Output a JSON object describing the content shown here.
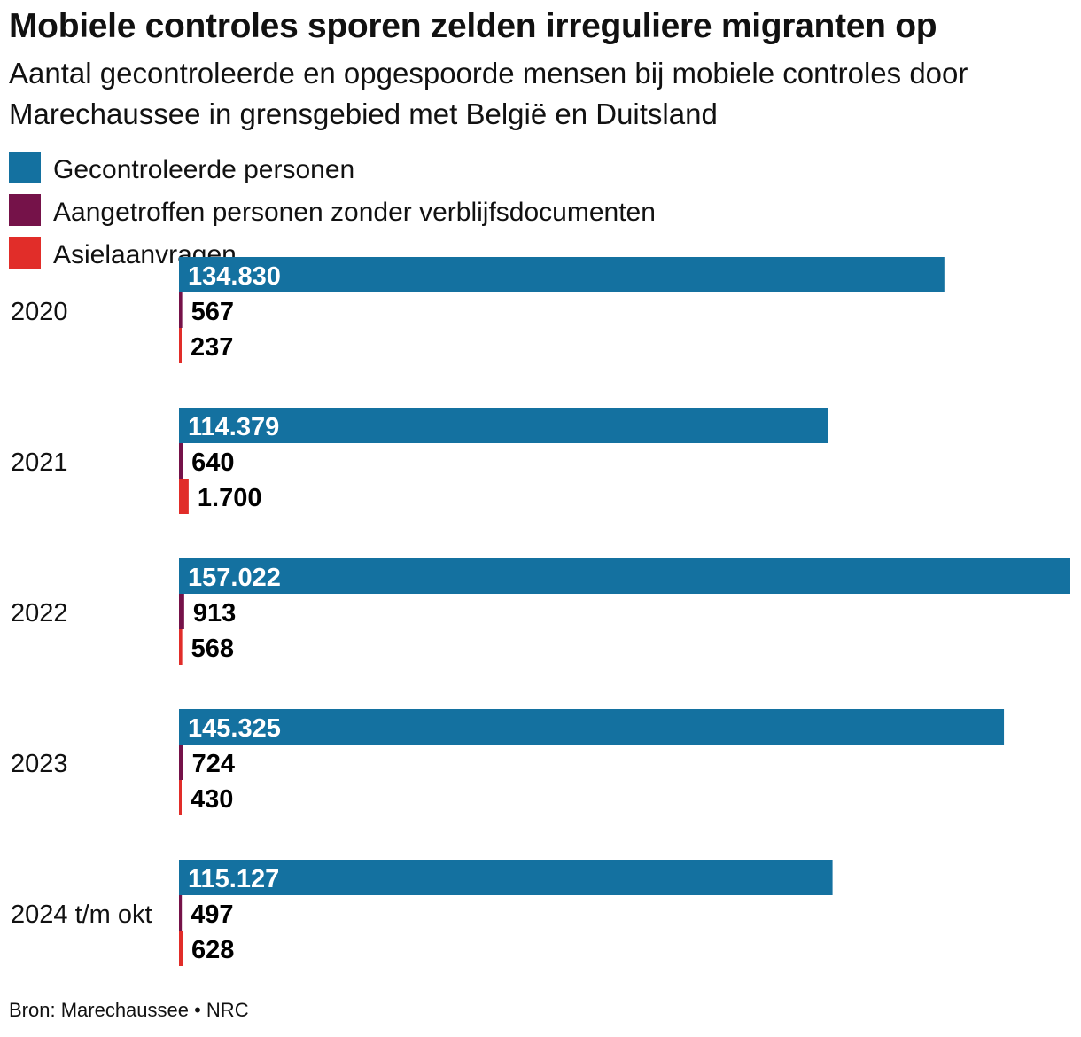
{
  "chart_data": {
    "type": "bar",
    "title": "Mobiele controles sporen zelden irreguliere migranten op",
    "subtitle": "Aantal gecontroleerde en opgespoorde mensen bij mobiele controles door Marechaussee in grensgebied met België en Duitsland",
    "categories": [
      "2020",
      "2021",
      "2022",
      "2023",
      "2024 t/m okt"
    ],
    "series": [
      {
        "name": "Gecontroleerde personen",
        "color": "#1471a0",
        "values": [
          134830,
          114379,
          157022,
          145325,
          115127
        ],
        "labels": [
          "134.830",
          "114.379",
          "157.022",
          "145.325",
          "115.127"
        ]
      },
      {
        "name": "Aangetroffen personen zonder verblijfsdocumenten",
        "color": "#751249",
        "values": [
          567,
          640,
          913,
          724,
          497
        ],
        "labels": [
          "567",
          "640",
          "913",
          "724",
          "497"
        ]
      },
      {
        "name": "Asielaanvragen",
        "color": "#e12d29",
        "values": [
          237,
          1700,
          568,
          430,
          628
        ],
        "labels": [
          "237",
          "1.700",
          "568",
          "430",
          "628"
        ]
      }
    ],
    "xlim": [
      0,
      157022
    ],
    "grid": false,
    "legend_position": "top"
  },
  "source": "Bron: Marechaussee  •  NRC"
}
